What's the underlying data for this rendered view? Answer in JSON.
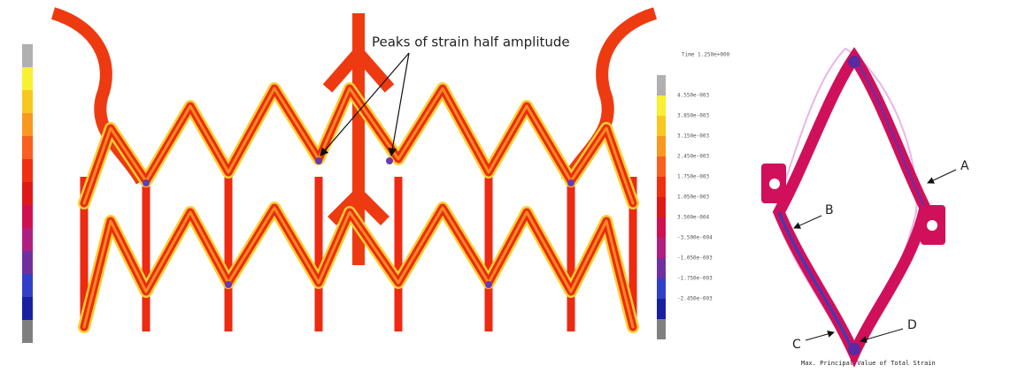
{
  "annotation": "Peaks of strain half amplitude",
  "contour_legend": {
    "time_label": "Time  1.250e+000",
    "labels": [
      "4.550e-003",
      "3.850e-003",
      "3.150e-003",
      "2.450e-003",
      "1.750e-003",
      "1.050e-003",
      "3.500e-004",
      "-3.500e-004",
      "-1.050e-003",
      "-1.750e-003",
      "-2.450e-003"
    ]
  },
  "points": [
    "A",
    "B",
    "C",
    "D"
  ],
  "result_label": "Max. Principal Value of Total Strain"
}
